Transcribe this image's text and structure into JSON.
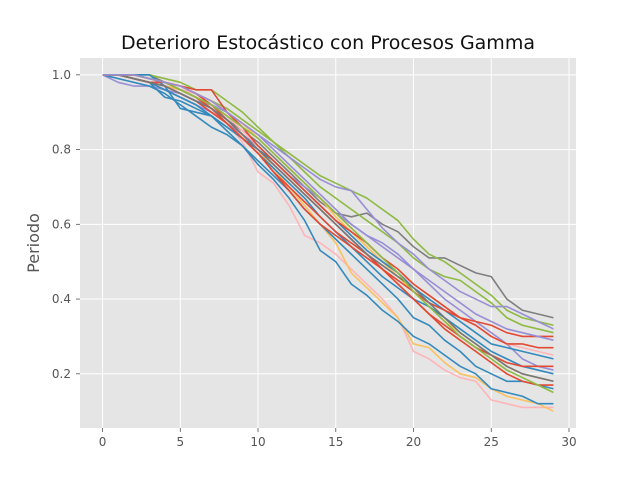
{
  "chart_data": {
    "type": "line",
    "title": "Deterioro Estocástico con Procesos Gamma",
    "xlabel": "",
    "ylabel": "Periodo",
    "xlim": [
      -1.45,
      30.45
    ],
    "ylim": [
      0.055,
      1.045
    ],
    "xticks": [
      0,
      5,
      10,
      15,
      20,
      25,
      30
    ],
    "yticks": [
      0.2,
      0.4,
      0.6,
      0.8,
      1.0
    ],
    "xtick_labels": [
      "0",
      "5",
      "10",
      "15",
      "20",
      "25",
      "30"
    ],
    "ytick_labels": [
      "0.2",
      "0.4",
      "0.6",
      "0.8",
      "1.0"
    ],
    "grid": true,
    "background": "#e5e5e5",
    "grid_color": "#ffffff",
    "legend": "none",
    "x": [
      0,
      1,
      2,
      3,
      4,
      5,
      6,
      7,
      8,
      9,
      10,
      11,
      12,
      13,
      14,
      15,
      16,
      17,
      18,
      19,
      20,
      21,
      22,
      23,
      24,
      25,
      26,
      27,
      28,
      29
    ],
    "series": [
      {
        "color": "#7f7f7f",
        "values": [
          1.0,
          1.0,
          1.0,
          1.0,
          0.98,
          0.96,
          0.94,
          0.91,
          0.88,
          0.85,
          0.82,
          0.78,
          0.74,
          0.7,
          0.66,
          0.63,
          0.62,
          0.63,
          0.6,
          0.58,
          0.54,
          0.51,
          0.51,
          0.49,
          0.47,
          0.46,
          0.4,
          0.37,
          0.36,
          0.35
        ]
      },
      {
        "color": "#8eba42",
        "values": [
          1.0,
          1.0,
          1.0,
          1.0,
          0.99,
          0.98,
          0.96,
          0.96,
          0.93,
          0.9,
          0.86,
          0.82,
          0.79,
          0.76,
          0.73,
          0.71,
          0.69,
          0.67,
          0.64,
          0.61,
          0.56,
          0.52,
          0.5,
          0.47,
          0.44,
          0.41,
          0.37,
          0.35,
          0.34,
          0.33
        ]
      },
      {
        "color": "#8eba42",
        "values": [
          1.0,
          1.0,
          0.99,
          0.98,
          0.97,
          0.96,
          0.95,
          0.93,
          0.91,
          0.88,
          0.85,
          0.82,
          0.78,
          0.74,
          0.7,
          0.67,
          0.64,
          0.61,
          0.58,
          0.55,
          0.51,
          0.48,
          0.46,
          0.45,
          0.42,
          0.39,
          0.35,
          0.33,
          0.32,
          0.31
        ]
      },
      {
        "color": "#988ed5",
        "values": [
          1.0,
          0.98,
          0.97,
          0.97,
          0.96,
          0.95,
          0.93,
          0.92,
          0.9,
          0.87,
          0.84,
          0.81,
          0.78,
          0.75,
          0.72,
          0.7,
          0.69,
          0.64,
          0.59,
          0.55,
          0.52,
          0.48,
          0.45,
          0.42,
          0.4,
          0.38,
          0.38,
          0.36,
          0.34,
          0.32
        ]
      },
      {
        "color": "#988ed5",
        "values": [
          1.0,
          1.0,
          0.99,
          0.98,
          0.96,
          0.94,
          0.92,
          0.9,
          0.87,
          0.84,
          0.81,
          0.77,
          0.73,
          0.7,
          0.67,
          0.63,
          0.6,
          0.57,
          0.55,
          0.52,
          0.48,
          0.44,
          0.4,
          0.37,
          0.34,
          0.31,
          0.28,
          0.24,
          0.22,
          0.21
        ]
      },
      {
        "color": "#ffb5b8",
        "values": [
          1.0,
          1.0,
          0.99,
          0.98,
          0.97,
          0.96,
          0.94,
          0.91,
          0.87,
          0.82,
          0.74,
          0.71,
          0.65,
          0.57,
          0.55,
          0.52,
          0.48,
          0.44,
          0.4,
          0.35,
          0.26,
          0.24,
          0.21,
          0.19,
          0.18,
          0.13,
          0.12,
          0.11,
          0.11,
          0.11
        ]
      },
      {
        "color": "#ffb5b8",
        "values": [
          1.0,
          1.0,
          0.99,
          0.98,
          0.97,
          0.96,
          0.95,
          0.92,
          0.89,
          0.85,
          0.81,
          0.77,
          0.73,
          0.69,
          0.65,
          0.61,
          0.57,
          0.53,
          0.5,
          0.47,
          0.44,
          0.41,
          0.38,
          0.35,
          0.33,
          0.3,
          0.28,
          0.27,
          0.26,
          0.25
        ]
      },
      {
        "color": "#fbc15e",
        "values": [
          1.0,
          1.0,
          0.99,
          0.98,
          0.97,
          0.96,
          0.94,
          0.91,
          0.88,
          0.84,
          0.8,
          0.75,
          0.7,
          0.65,
          0.6,
          0.55,
          0.47,
          0.43,
          0.39,
          0.35,
          0.28,
          0.27,
          0.23,
          0.2,
          0.19,
          0.16,
          0.14,
          0.13,
          0.12,
          0.1
        ]
      },
      {
        "color": "#fbc15e",
        "values": [
          1.0,
          1.0,
          0.99,
          0.98,
          0.98,
          0.97,
          0.95,
          0.93,
          0.9,
          0.87,
          0.83,
          0.79,
          0.75,
          0.71,
          0.67,
          0.62,
          0.58,
          0.54,
          0.5,
          0.46,
          0.42,
          0.38,
          0.34,
          0.31,
          0.28,
          0.25,
          0.22,
          0.2,
          0.19,
          0.18
        ]
      },
      {
        "color": "#348abd",
        "values": [
          1.0,
          1.0,
          1.0,
          1.0,
          0.97,
          0.91,
          0.9,
          0.89,
          0.85,
          0.81,
          0.76,
          0.72,
          0.67,
          0.61,
          0.53,
          0.5,
          0.44,
          0.41,
          0.37,
          0.34,
          0.3,
          0.28,
          0.25,
          0.22,
          0.2,
          0.16,
          0.15,
          0.14,
          0.12,
          0.12
        ]
      },
      {
        "color": "#348abd",
        "values": [
          1.0,
          0.99,
          0.98,
          0.97,
          0.95,
          0.92,
          0.89,
          0.86,
          0.84,
          0.81,
          0.77,
          0.73,
          0.69,
          0.64,
          0.6,
          0.56,
          0.52,
          0.48,
          0.44,
          0.4,
          0.35,
          0.33,
          0.29,
          0.26,
          0.22,
          0.2,
          0.18,
          0.18,
          0.17,
          0.16
        ]
      },
      {
        "color": "#348abd",
        "values": [
          1.0,
          1.0,
          0.99,
          0.98,
          0.94,
          0.93,
          0.91,
          0.89,
          0.86,
          0.83,
          0.8,
          0.77,
          0.73,
          0.69,
          0.65,
          0.61,
          0.57,
          0.53,
          0.5,
          0.47,
          0.43,
          0.4,
          0.37,
          0.34,
          0.31,
          0.28,
          0.27,
          0.26,
          0.25,
          0.24
        ]
      },
      {
        "color": "#348abd",
        "values": [
          1.0,
          1.0,
          0.99,
          0.98,
          0.96,
          0.94,
          0.92,
          0.89,
          0.86,
          0.83,
          0.79,
          0.75,
          0.71,
          0.67,
          0.62,
          0.58,
          0.54,
          0.5,
          0.46,
          0.43,
          0.4,
          0.38,
          0.35,
          0.32,
          0.29,
          0.26,
          0.24,
          0.22,
          0.21,
          0.2
        ]
      },
      {
        "color": "#e24a33",
        "values": [
          1.0,
          1.0,
          0.99,
          0.98,
          0.98,
          0.97,
          0.96,
          0.96,
          0.9,
          0.86,
          0.81,
          0.77,
          0.73,
          0.69,
          0.65,
          0.61,
          0.58,
          0.55,
          0.51,
          0.48,
          0.44,
          0.41,
          0.38,
          0.35,
          0.33,
          0.3,
          0.28,
          0.28,
          0.27,
          0.27
        ]
      },
      {
        "color": "#e24a33",
        "values": [
          1.0,
          1.0,
          1.0,
          0.99,
          0.98,
          0.96,
          0.94,
          0.91,
          0.87,
          0.83,
          0.79,
          0.74,
          0.7,
          0.66,
          0.62,
          0.58,
          0.55,
          0.52,
          0.48,
          0.44,
          0.4,
          0.36,
          0.33,
          0.3,
          0.27,
          0.25,
          0.23,
          0.22,
          0.22,
          0.22
        ]
      },
      {
        "color": "#e24a33",
        "values": [
          1.0,
          1.0,
          0.99,
          0.98,
          0.97,
          0.95,
          0.93,
          0.9,
          0.87,
          0.83,
          0.79,
          0.74,
          0.69,
          0.64,
          0.6,
          0.57,
          0.54,
          0.51,
          0.48,
          0.45,
          0.42,
          0.39,
          0.37,
          0.35,
          0.34,
          0.33,
          0.31,
          0.3,
          0.3,
          0.3
        ]
      },
      {
        "color": "#e24a33",
        "values": [
          1.0,
          1.0,
          1.0,
          0.99,
          0.98,
          0.97,
          0.95,
          0.92,
          0.88,
          0.84,
          0.8,
          0.76,
          0.72,
          0.68,
          0.64,
          0.6,
          0.56,
          0.52,
          0.48,
          0.44,
          0.4,
          0.36,
          0.32,
          0.29,
          0.26,
          0.23,
          0.2,
          0.18,
          0.17,
          0.17
        ]
      },
      {
        "color": "#777777",
        "values": [
          1.0,
          1.0,
          0.99,
          0.98,
          0.97,
          0.95,
          0.93,
          0.91,
          0.88,
          0.84,
          0.8,
          0.76,
          0.72,
          0.68,
          0.64,
          0.6,
          0.56,
          0.52,
          0.49,
          0.46,
          0.43,
          0.39,
          0.35,
          0.31,
          0.28,
          0.25,
          0.22,
          0.2,
          0.19,
          0.18
        ]
      },
      {
        "color": "#8eba42",
        "values": [
          1.0,
          1.0,
          1.0,
          0.99,
          0.98,
          0.96,
          0.94,
          0.92,
          0.89,
          0.86,
          0.83,
          0.79,
          0.75,
          0.71,
          0.67,
          0.63,
          0.59,
          0.55,
          0.51,
          0.47,
          0.42,
          0.38,
          0.34,
          0.3,
          0.27,
          0.24,
          0.21,
          0.19,
          0.17,
          0.15
        ]
      },
      {
        "color": "#988ed5",
        "values": [
          1.0,
          1.0,
          1.0,
          0.99,
          0.98,
          0.97,
          0.95,
          0.93,
          0.9,
          0.87,
          0.84,
          0.8,
          0.76,
          0.72,
          0.68,
          0.64,
          0.6,
          0.57,
          0.54,
          0.51,
          0.48,
          0.45,
          0.42,
          0.39,
          0.36,
          0.34,
          0.32,
          0.31,
          0.3,
          0.29
        ]
      }
    ]
  }
}
